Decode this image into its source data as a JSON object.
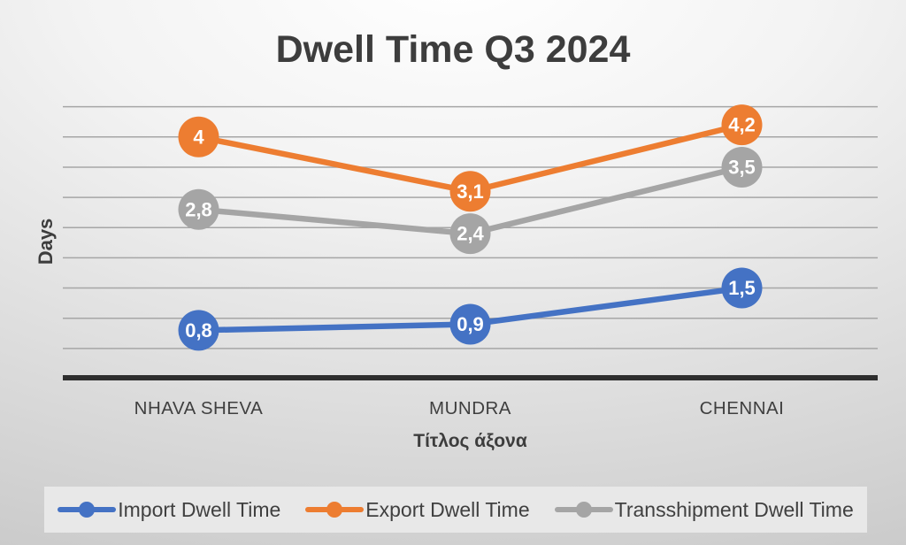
{
  "chart_data": {
    "type": "line",
    "title": "Dwell Time Q3 2024",
    "categories": [
      "NHAVA SHEVA",
      "MUNDRA",
      "CHENNAI"
    ],
    "series": [
      {
        "name": "Import Dwell Time",
        "color": "#4472C4",
        "values": [
          0.8,
          0.9,
          1.5
        ],
        "labels": [
          "0,8",
          "0,9",
          "1,5"
        ]
      },
      {
        "name": "Export Dwell Time",
        "color": "#ED7D31",
        "values": [
          4,
          3.1,
          4.2
        ],
        "labels": [
          "4",
          "3,1",
          "4,2"
        ]
      },
      {
        "name": "Transshipment Dwell Time",
        "color": "#A5A5A5",
        "values": [
          2.8,
          2.4,
          3.5
        ],
        "labels": [
          "2,8",
          "2,4",
          "3,5"
        ]
      }
    ],
    "xlabel": "Τίτλος άξονα",
    "ylabel": "Days",
    "ylim": [
      0,
      4.5
    ],
    "gridline_step": 0.5,
    "grid": true,
    "legend_position": "bottom",
    "decimal_separator": "comma",
    "colors": {
      "title_text": "#3d3d3d",
      "axis_line": "#2e2e2e",
      "gridline": "#a6a6a6",
      "category_text": "#3f3f3f",
      "data_label_text": "#ffffff",
      "legend_background": "#e8e8e8"
    }
  }
}
